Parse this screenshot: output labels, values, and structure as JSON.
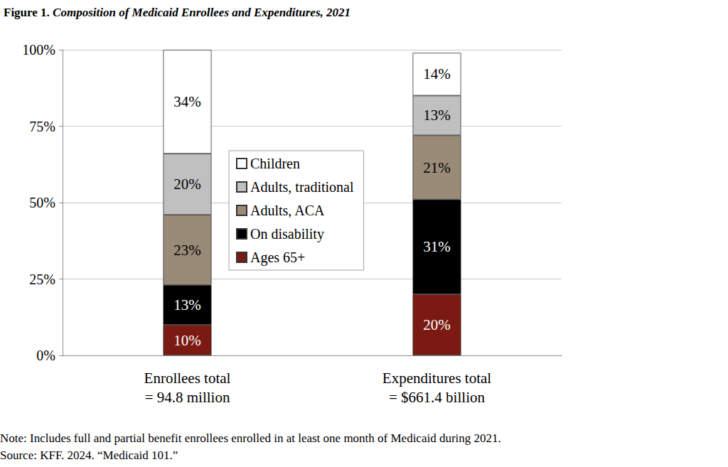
{
  "chart_data": {
    "type": "bar",
    "title": "Figure 1. Composition of Medicaid Enrollees and Expenditures, 2021",
    "annotations": [
      "Note: Includes full and partial benefit enrollees enrolled in at least one month of Medicaid during 2021.",
      "Source: KFF. 2024. “Medicaid 101.”"
    ],
    "categories": [
      "Enrollees total\n= 94.8 million",
      "Expenditures total\n= $661.4 billion"
    ],
    "series": [
      {
        "name": "Ages 65+",
        "color": "#7a1a12",
        "values": [
          10,
          20
        ],
        "value_labels": [
          "10%",
          "20%"
        ]
      },
      {
        "name": "On disability",
        "color": "#000000",
        "values": [
          13,
          31
        ],
        "value_labels": [
          "13%",
          "31%"
        ]
      },
      {
        "name": "Adults, ACA",
        "color": "#9a8a78",
        "values": [
          23,
          21
        ],
        "value_labels": [
          "23%",
          "21%"
        ]
      },
      {
        "name": "Adults, traditional",
        "color": "#c0c0c0",
        "values": [
          20,
          13
        ],
        "value_labels": [
          "20%",
          "13%"
        ]
      },
      {
        "name": "Children",
        "color": "#ffffff",
        "values": [
          34,
          14
        ],
        "value_labels": [
          "34%",
          "14%"
        ]
      }
    ],
    "ylim": [
      0,
      100
    ],
    "yticks": [
      {
        "value": 0,
        "label": "0%"
      },
      {
        "value": 25,
        "label": "25%"
      },
      {
        "value": 50,
        "label": "50%"
      },
      {
        "value": 75,
        "label": "75%"
      },
      {
        "value": 100,
        "label": "100%"
      }
    ],
    "stacked": true,
    "data_labels": true,
    "grid": true,
    "legend": "center"
  }
}
